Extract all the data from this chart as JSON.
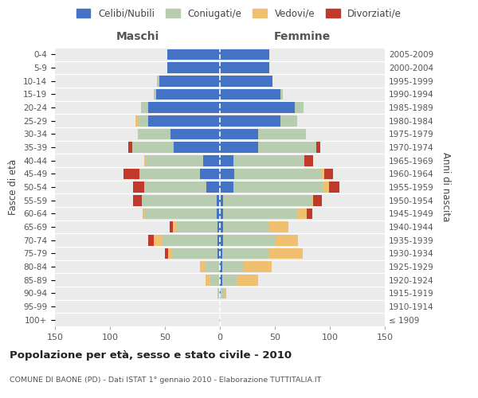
{
  "age_groups": [
    "100+",
    "95-99",
    "90-94",
    "85-89",
    "80-84",
    "75-79",
    "70-74",
    "65-69",
    "60-64",
    "55-59",
    "50-54",
    "45-49",
    "40-44",
    "35-39",
    "30-34",
    "25-29",
    "20-24",
    "15-19",
    "10-14",
    "5-9",
    "0-4"
  ],
  "birth_years": [
    "≤ 1909",
    "1910-1914",
    "1915-1919",
    "1920-1924",
    "1925-1929",
    "1930-1934",
    "1935-1939",
    "1940-1944",
    "1945-1949",
    "1950-1954",
    "1955-1959",
    "1960-1964",
    "1965-1969",
    "1970-1974",
    "1975-1979",
    "1980-1984",
    "1985-1989",
    "1990-1994",
    "1995-1999",
    "2000-2004",
    "2005-2009"
  ],
  "maschi_celibi": [
    0,
    0,
    0,
    0,
    0,
    2,
    2,
    2,
    3,
    3,
    12,
    18,
    15,
    42,
    45,
    65,
    65,
    58,
    55,
    48,
    48
  ],
  "maschi_coniugati": [
    1,
    0,
    2,
    9,
    13,
    42,
    50,
    38,
    65,
    68,
    57,
    55,
    52,
    38,
    30,
    10,
    7,
    2,
    2,
    0,
    0
  ],
  "maschi_vedovi": [
    0,
    0,
    0,
    4,
    5,
    3,
    8,
    3,
    2,
    0,
    0,
    0,
    2,
    0,
    0,
    2,
    0,
    0,
    0,
    0,
    0
  ],
  "maschi_divorziati": [
    0,
    0,
    0,
    0,
    0,
    3,
    5,
    3,
    0,
    8,
    10,
    15,
    0,
    3,
    0,
    0,
    0,
    0,
    0,
    0,
    0
  ],
  "femmine_celibi": [
    0,
    0,
    1,
    2,
    2,
    2,
    3,
    3,
    3,
    3,
    12,
    13,
    12,
    35,
    35,
    55,
    68,
    55,
    48,
    45,
    45
  ],
  "femmine_coniugati": [
    0,
    0,
    3,
    13,
    20,
    43,
    48,
    42,
    68,
    80,
    82,
    80,
    65,
    53,
    43,
    15,
    8,
    2,
    0,
    0,
    0
  ],
  "femmine_vedovi": [
    0,
    0,
    2,
    20,
    25,
    30,
    20,
    17,
    8,
    2,
    5,
    2,
    0,
    0,
    0,
    0,
    0,
    0,
    0,
    0,
    0
  ],
  "femmine_divorziati": [
    0,
    0,
    0,
    0,
    0,
    0,
    0,
    0,
    5,
    8,
    10,
    8,
    8,
    3,
    0,
    0,
    0,
    0,
    0,
    0,
    0
  ],
  "color_celibi": "#4472c4",
  "color_coniugati": "#b8ccb0",
  "color_vedovi": "#f0c070",
  "color_divorziati": "#c0392b",
  "title": "Popolazione per età, sesso e stato civile - 2010",
  "subtitle": "COMUNE DI BAONE (PD) - Dati ISTAT 1° gennaio 2010 - Elaborazione TUTTITALIA.IT",
  "xlabel_left": "Maschi",
  "xlabel_right": "Femmine",
  "ylabel_left": "Fasce di età",
  "ylabel_right": "Anni di nascita",
  "xlim": 150,
  "bg_color": "#ffffff",
  "legend_labels": [
    "Celibi/Nubili",
    "Coniugati/e",
    "Vedovi/e",
    "Divorziati/e"
  ],
  "legend_colors": [
    "#4472c4",
    "#b8ccb0",
    "#f0c070",
    "#c0392b"
  ]
}
